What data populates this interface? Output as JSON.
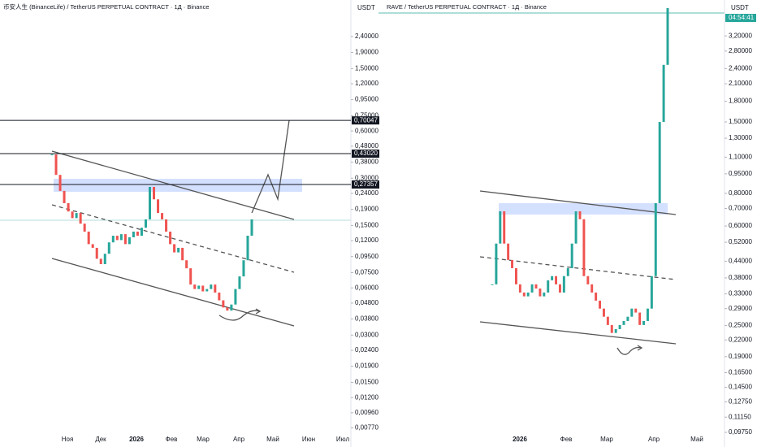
{
  "chart_data": [
    {
      "type": "candlestick",
      "title": "币安人生 (BinanceLife) / TetherUS PERPETUAL CONTRACT · 1Д · Binance",
      "y_label": "USDT",
      "log_scale": true,
      "up_color": "#26a69a",
      "down_color": "#ef5350",
      "values": [
        0.425,
        0.315,
        0.249,
        0.208,
        0.184,
        0.167,
        0.18,
        0.154,
        0.137,
        0.114,
        0.108,
        0.092,
        0.085,
        0.099,
        0.117,
        0.129,
        0.121,
        0.132,
        0.114,
        0.126,
        0.137,
        0.129,
        0.145,
        0.164,
        0.264,
        0.22,
        0.18,
        0.164,
        0.137,
        0.114,
        0.101,
        0.108,
        0.09,
        0.08,
        0.063,
        0.059,
        0.062,
        0.057,
        0.059,
        0.063,
        0.056,
        0.05,
        0.045,
        0.043,
        0.047,
        0.059,
        0.071,
        0.09,
        0.129,
        0.164
      ],
      "ylim": [
        0.0072,
        4.1
      ],
      "yticks": [
        {
          "value": 2.4,
          "label": "2,40000"
        },
        {
          "value": 1.9,
          "label": "1,90000"
        },
        {
          "value": 1.5,
          "label": "1,50000"
        },
        {
          "value": 1.2,
          "label": "1,20000"
        },
        {
          "value": 0.95,
          "label": "0,95000"
        },
        {
          "value": 0.75,
          "label": "0,75000"
        },
        {
          "value": 0.6,
          "label": "0,60000"
        },
        {
          "value": 0.48,
          "label": "0,48000"
        },
        {
          "value": 0.38,
          "label": "0,38000"
        },
        {
          "value": 0.3,
          "label": "0,30000"
        },
        {
          "value": 0.24,
          "label": "0,24000"
        },
        {
          "value": 0.19,
          "label": "0,19000"
        },
        {
          "value": 0.15,
          "label": "0,15000"
        },
        {
          "value": 0.12,
          "label": "0,12000"
        },
        {
          "value": 0.095,
          "label": "0,09500"
        },
        {
          "value": 0.075,
          "label": "0,07500"
        },
        {
          "value": 0.06,
          "label": "0,06000"
        },
        {
          "value": 0.048,
          "label": "0,04800"
        },
        {
          "value": 0.038,
          "label": "0,03800"
        },
        {
          "value": 0.03,
          "label": "0,03000"
        },
        {
          "value": 0.024,
          "label": "0,02400"
        },
        {
          "value": 0.019,
          "label": "0,01900"
        },
        {
          "value": 0.015,
          "label": "0,01500"
        },
        {
          "value": 0.012,
          "label": "0,01200"
        },
        {
          "value": 0.0096,
          "label": "0,00960"
        },
        {
          "value": 0.0077,
          "label": "0,00770"
        }
      ],
      "price_lines": [
        {
          "value": 0.70047,
          "label": "0,70047"
        },
        {
          "value": 0.4302,
          "label": "0,43020"
        },
        {
          "value": 0.27357,
          "label": "0,27357"
        }
      ],
      "x_labels": [
        "Ноя",
        "Дек",
        "2026",
        "Фев",
        "Мар",
        "Апр",
        "Май",
        "Июн",
        "Июл"
      ]
    },
    {
      "type": "candlestick",
      "title": "RAVE / TetherUS PERPETUAL CONTRACT · 1Д · Binance",
      "y_label": "USDT",
      "log_scale": true,
      "up_color": "#26a69a",
      "down_color": "#ef5350",
      "countdown": "04:54:41",
      "values": [
        0.359,
        0.514,
        0.683,
        0.514,
        0.445,
        0.414,
        0.359,
        0.334,
        0.323,
        0.334,
        0.359,
        0.346,
        0.323,
        0.334,
        0.372,
        0.386,
        0.359,
        0.334,
        0.386,
        0.414,
        0.514,
        0.683,
        0.637,
        0.386,
        0.359,
        0.334,
        0.311,
        0.29,
        0.27,
        0.251,
        0.234,
        0.242,
        0.251,
        0.26,
        0.27,
        0.29,
        0.28,
        0.251,
        0.26,
        0.29,
        0.386,
        0.734,
        1.5,
        2.48,
        4.09
      ],
      "ylim": [
        0.0975,
        4.39
      ],
      "yticks": [
        {
          "value": 3.2,
          "label": "3,20000"
        },
        {
          "value": 2.8,
          "label": "2,80000"
        },
        {
          "value": 2.4,
          "label": "2,40000"
        },
        {
          "value": 2.1,
          "label": "2,10000"
        },
        {
          "value": 1.8,
          "label": "1,80000"
        },
        {
          "value": 1.5,
          "label": "1,50000"
        },
        {
          "value": 1.3,
          "label": "1,30000"
        },
        {
          "value": 1.1,
          "label": "1,10000"
        },
        {
          "value": 0.95,
          "label": "0,95000"
        },
        {
          "value": 0.8,
          "label": "0,80000"
        },
        {
          "value": 0.7,
          "label": "0,70000"
        },
        {
          "value": 0.6,
          "label": "0,60000"
        },
        {
          "value": 0.52,
          "label": "0,52000"
        },
        {
          "value": 0.44,
          "label": "0,44000"
        },
        {
          "value": 0.38,
          "label": "0,38000"
        },
        {
          "value": 0.33,
          "label": "0,33000"
        },
        {
          "value": 0.29,
          "label": "0,29000"
        },
        {
          "value": 0.25,
          "label": "0,25000"
        },
        {
          "value": 0.22,
          "label": "0,22000"
        },
        {
          "value": 0.19,
          "label": "0,19000"
        },
        {
          "value": 0.165,
          "label": "0,16500"
        },
        {
          "value": 0.145,
          "label": "0,14500"
        },
        {
          "value": 0.1275,
          "label": "0,12750"
        },
        {
          "value": 0.1115,
          "label": "0,11150"
        },
        {
          "value": 0.0975,
          "label": "0,09750"
        }
      ],
      "x_labels": [
        "2026",
        "Фев",
        "Мар",
        "Апр",
        "Май"
      ]
    }
  ]
}
